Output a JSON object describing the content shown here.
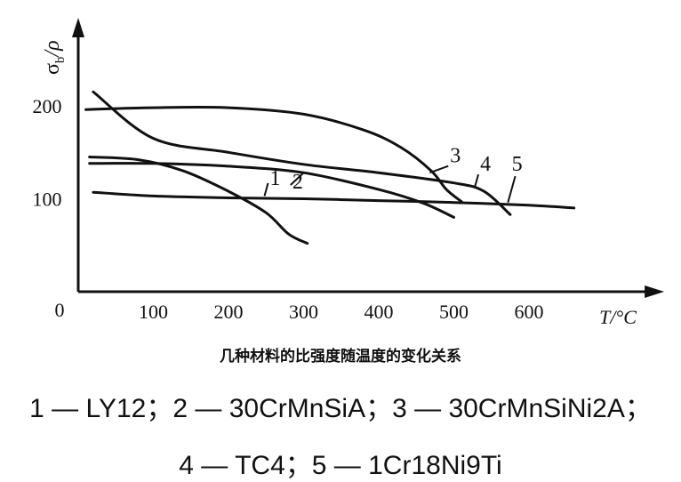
{
  "chart_data": {
    "type": "line",
    "caption": "几种材料的比强度随温度的变化关系",
    "ylabel": "σ",
    "ylabel_sub": "b",
    "ylabel_tail": "/ρ",
    "xlabel": "T/°C",
    "origin_label": "0",
    "xticks": [
      {
        "value": 100,
        "label": "100"
      },
      {
        "value": 200,
        "label": "200"
      },
      {
        "value": 300,
        "label": "300"
      },
      {
        "value": 400,
        "label": "400"
      },
      {
        "value": 500,
        "label": "500"
      },
      {
        "value": 600,
        "label": "600"
      }
    ],
    "yticks": [
      {
        "value": 100,
        "label": "100"
      },
      {
        "value": 200,
        "label": "200"
      }
    ],
    "xlim": [
      0,
      780
    ],
    "ylim": [
      0,
      280
    ],
    "series": [
      {
        "name": "LY12",
        "curve_label": "1",
        "label_at": [
          255,
          115
        ],
        "x": [
          15,
          80,
          140,
          200,
          250,
          280,
          305
        ],
        "y": [
          145,
          142,
          130,
          108,
          85,
          62,
          52
        ]
      },
      {
        "name": "30CrMnSiA",
        "curve_label": "2",
        "label_at": [
          285,
          111
        ],
        "x": [
          15,
          100,
          200,
          300,
          400,
          460,
          500
        ],
        "y": [
          138,
          138,
          135,
          128,
          110,
          95,
          80
        ]
      },
      {
        "name": "30CrMnSiNi2A",
        "curve_label": "3",
        "label_at": [
          495,
          139
        ],
        "x": [
          10,
          100,
          200,
          300,
          380,
          430,
          470,
          490,
          510
        ],
        "y": [
          196,
          198,
          198,
          191,
          174,
          155,
          130,
          110,
          97
        ]
      },
      {
        "name": "TC4",
        "curve_label": "4",
        "label_at": [
          535,
          130
        ],
        "x": [
          20,
          100,
          200,
          300,
          400,
          500,
          540,
          575
        ],
        "y": [
          215,
          165,
          150,
          137,
          128,
          117,
          108,
          83
        ]
      },
      {
        "name": "1Cr18Ni9Ti",
        "curve_label": "5",
        "label_at": [
          577,
          130
        ],
        "x": [
          20,
          100,
          200,
          300,
          400,
          500,
          600,
          660
        ],
        "y": [
          107,
          103,
          101,
          100,
          98,
          96,
          93,
          90
        ]
      }
    ],
    "legend": {
      "line1": "1 — LY12；2 — 30CrMnSiA；3 — 30CrMnSiNi2A；",
      "line2": "4 — TC4；5 — 1Cr18Ni9Ti"
    },
    "grid": false
  },
  "colors": {
    "ink": "#111111",
    "background": "#ffffff"
  }
}
